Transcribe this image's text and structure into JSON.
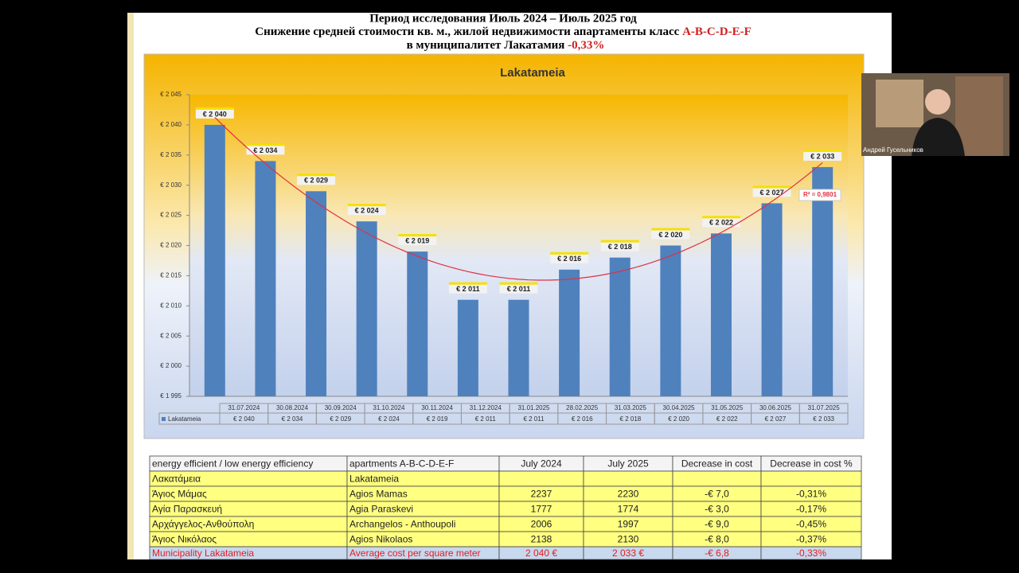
{
  "header": {
    "line1": "Период исследования Июль 2024 – Июль 2025 год",
    "line2": {
      "text": "Снижение средней стоимости кв. м., жилой недвижимости апартаменты класс",
      "highlight": "A-B-C-D-E-F"
    },
    "line3": {
      "text": "в муниципалитет",
      "place": "Лакатамия",
      "change": "-0,33%"
    }
  },
  "chart_data": {
    "type": "bar",
    "title": "Lakatameia",
    "categories": [
      "31.07.2024",
      "30.08.2024",
      "30.09.2024",
      "31.10.2024",
      "30.11.2024",
      "31.12.2024",
      "31.01.2025",
      "28.02.2025",
      "31.03.2025",
      "30.04.2025",
      "31.05.2025",
      "30.06.2025",
      "31.07.2025"
    ],
    "series": [
      {
        "name": "Lakatameia",
        "color": "#4f81bd",
        "values": [
          2040,
          2034,
          2029,
          2024,
          2019,
          2011,
          2011,
          2016,
          2018,
          2020,
          2022,
          2027,
          2033
        ],
        "value_labels": [
          "€ 2 040",
          "€ 2 034",
          "€ 2 029",
          "€ 2 024",
          "€ 2 019",
          "€ 2 011",
          "€ 2 011",
          "€ 2 016",
          "€ 2 018",
          "€ 2 020",
          "€ 2 022",
          "€ 2 027",
          "€ 2 033"
        ]
      }
    ],
    "ylim": [
      1995,
      2045
    ],
    "yticks": [
      {
        "value": 1995,
        "label": "€ 1 995"
      },
      {
        "value": 2000,
        "label": "€ 2 000"
      },
      {
        "value": 2005,
        "label": "€ 2 005"
      },
      {
        "value": 2010,
        "label": "€ 2 010"
      },
      {
        "value": 2015,
        "label": "€ 2 015"
      },
      {
        "value": 2020,
        "label": "€ 2 020"
      },
      {
        "value": 2025,
        "label": "€ 2 025"
      },
      {
        "value": 2030,
        "label": "€ 2 030"
      },
      {
        "value": 2035,
        "label": "€ 2 035"
      },
      {
        "value": 2040,
        "label": "€ 2 040"
      },
      {
        "value": 2045,
        "label": "€ 2 045"
      }
    ],
    "trendline": {
      "color": "#e03040",
      "annotation": "R² = 0,9801"
    },
    "grid": false
  },
  "table": {
    "header": [
      "energy efficient / low energy efficiency",
      "apartments A-B-C-D-E-F",
      "July 2024",
      "July 2025",
      "Decrease in cost",
      "Decrease in cost  %"
    ],
    "rows": [
      [
        "Λακατάμεια",
        "Lakatameia"
      ],
      [
        "Άγιος Μάμας",
        "Agios Mamas",
        2237,
        2230,
        "-€ 7,0",
        "-0,31%"
      ],
      [
        "Αγία Παρασκευή",
        "Agia Paraskevi",
        1777,
        1774,
        "-€ 3,0",
        "-0,17%"
      ],
      [
        "Αρχάγγελος-Ανθούπολη",
        "Archangelos - Anthoupoli",
        2006,
        1997,
        "-€ 9,0",
        "-0,45%"
      ],
      [
        "Άγιος Νικόλαος",
        "Agios Nikolaos",
        2138,
        2130,
        "-€ 8,0",
        "-0,37%"
      ],
      [
        "Municipality  Lakatameia",
        "Average cost per square meter",
        "2 040 €",
        "2 033 €",
        "-€ 6,8",
        "-0,33%"
      ]
    ]
  },
  "participant": {
    "name": "Андрей Гусельников"
  }
}
